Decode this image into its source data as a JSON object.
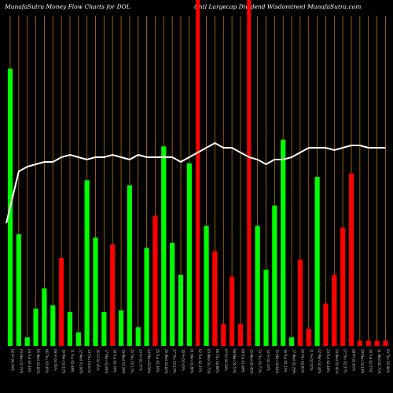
{
  "header": {
    "left": "MunafaSutra  Money Flow  Charts for DOL",
    "right": "(Intl Largecap Dividend Wisdomtree) MunafaSutra.com"
  },
  "colors": {
    "background": "#000000",
    "gridline": "#b8760e",
    "up": "#00ff00",
    "down": "#ff0000",
    "highlight": "#ff0000",
    "price_line": "#ffffff"
  },
  "chart_data": {
    "type": "bar",
    "title": "MunafaSutra  Money Flow  Charts for DOL",
    "bar_scale": [
      0,
      200
    ],
    "line_scale": [
      0,
      100
    ],
    "categories": [
      "02 Fri 06.79%",
      "03 Mon 02.72%",
      "04 Tue 02.34%",
      "05 Wed 02.63%",
      "06 Thu 02.45%",
      "09 Fri 03.56%",
      "10 Mon 02.12%",
      "11 Tue 02.68%",
      "12 Wed 01.93%",
      "13 Thu 03.21%",
      "16 Fri 02.45%",
      "17 Mon 02.84%",
      "18 Tue 02.76%",
      "19 Wed 03.28%",
      "20 Thu 02.11%",
      "23 Fri 02.77%",
      "24 Mon 02.06%",
      "25 Tue 02.36%",
      "26 Wed 02.62%",
      "27 Thu 02.13%",
      "30 Fri 03.43%",
      "01 Mon 01.86%",
      "02 Tue 02.47%",
      "03 Wed 03.75%",
      "06 Thu 02.88%",
      "07 Fri 02.19%",
      "08 Mon 02.57%",
      "09 Tue 01.98%",
      "10 Wed 02.45%",
      "13 Thu 02.71%",
      "14 Fri 02.33%",
      "15 Mon 02.64%",
      "16 Tue 03.12%",
      "17 Wed 02.29%",
      "20 Thu 02.81%",
      "21 Fri 02.57%",
      "22 Mon 02.34%",
      "23 Tue 02.48%",
      "24 Wed 02.91%",
      "27 Thu 02.37%",
      "28 Fri 02.63%",
      "29 Mon 02.18%",
      "30 Tue 02.55%",
      "31 Wed 02.72%",
      "03 Thu 02.96%"
    ],
    "values": [
      164,
      66,
      5,
      22,
      34,
      24,
      52,
      20,
      8,
      98,
      64,
      20,
      60,
      21,
      95,
      11,
      58,
      77,
      118,
      61,
      42,
      108,
      280,
      71,
      56,
      13,
      41,
      13,
      280,
      71,
      45,
      83,
      122,
      5,
      51,
      10,
      100,
      25,
      42,
      70,
      102,
      3,
      3,
      3,
      3
    ],
    "directions": [
      "up",
      "up",
      "up",
      "up",
      "up",
      "up",
      "down",
      "up",
      "up",
      "up",
      "up",
      "up",
      "down",
      "up",
      "up",
      "up",
      "up",
      "down",
      "up",
      "up",
      "up",
      "up",
      "highlight",
      "up",
      "down",
      "down",
      "down",
      "down",
      "highlight",
      "up",
      "up",
      "up",
      "up",
      "up",
      "down",
      "down",
      "up",
      "down",
      "down",
      "down",
      "down",
      "down",
      "down",
      "down",
      "down"
    ],
    "price_line": [
      52,
      74,
      76,
      77,
      78,
      78,
      80,
      81,
      80,
      79,
      80,
      80,
      81,
      80,
      79,
      81,
      80,
      80,
      80,
      80,
      78,
      80,
      82,
      84,
      86,
      84,
      84,
      82,
      80,
      79,
      77,
      79,
      79,
      80,
      82,
      84,
      84,
      84,
      83,
      84,
      85,
      85,
      84,
      84,
      84
    ]
  }
}
